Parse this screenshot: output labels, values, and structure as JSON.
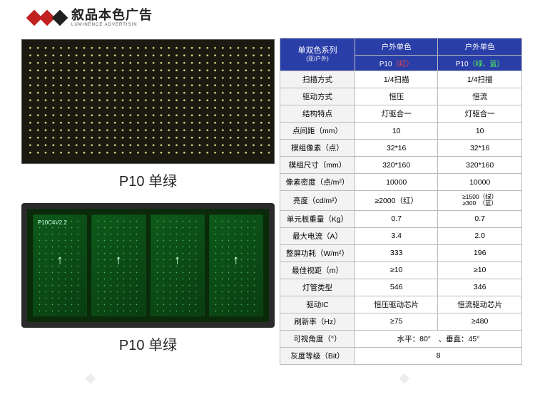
{
  "logo": {
    "cn": "叙品本色广告",
    "en": "LUMINENCE ADVERTISIN",
    "diamond_colors": [
      "#c02020",
      "#c02020",
      "#202020"
    ]
  },
  "captions": {
    "front": "P10 单绿",
    "back": "P10 单绿"
  },
  "pcb_label": "P10C4V2.2",
  "table": {
    "header": {
      "series_title": "单双色系列",
      "series_sub": "(亚/户外)",
      "col1_top": "户外单色",
      "col2_top": "户外单色",
      "col1_sub": "P10（红）",
      "col2_sub": "P10（绿、蓝）"
    },
    "rows": [
      {
        "label": "扫描方式",
        "v1": "1/4扫描",
        "v2": "1/4扫描"
      },
      {
        "label": "驱动方式",
        "v1": "恒压",
        "v2": "恒流"
      },
      {
        "label": "结构特点",
        "v1": "灯驱合一",
        "v2": "灯驱合一"
      },
      {
        "label": "点间距（mm）",
        "v1": "10",
        "v2": "10"
      },
      {
        "label": "模组像素（点）",
        "v1": "32*16",
        "v2": "32*16"
      },
      {
        "label": "模组尺寸（mm）",
        "v1": "320*160",
        "v2": "320*160"
      },
      {
        "label": "像素密度（点/m²）",
        "v1": "10000",
        "v2": "10000"
      },
      {
        "label": "亮度（cd/m²）",
        "v1": "≥2000（红）",
        "v2": "≥1500（绿）\n≥300　（蓝）"
      },
      {
        "label": "单元板重量（Kg）",
        "v1": "0.7",
        "v2": "0.7"
      },
      {
        "label": "最大电流（A）",
        "v1": "3.4",
        "v2": "2.0"
      },
      {
        "label": "整屏功耗（W/m²）",
        "v1": "333",
        "v2": "196"
      },
      {
        "label": "最佳视距（m）",
        "v1": "≥10",
        "v2": "≥10"
      },
      {
        "label": "灯管类型",
        "v1": "546",
        "v2": "346"
      },
      {
        "label": "驱动IC",
        "v1": "恒压驱动芯片",
        "v2": "恒流驱动芯片"
      },
      {
        "label": "刷新率（Hz）",
        "v1": "≥75",
        "v2": "≥480"
      },
      {
        "label": "可视角度（°）",
        "span": "水平：80°　、垂直：45°"
      },
      {
        "label": "灰度等级（Bit）",
        "span": "8"
      }
    ],
    "colors": {
      "header_bg": "#2a3ea8",
      "header_fg": "#ffffff",
      "border": "#bbbbbb",
      "label_bg": "#f3f3f3"
    }
  }
}
